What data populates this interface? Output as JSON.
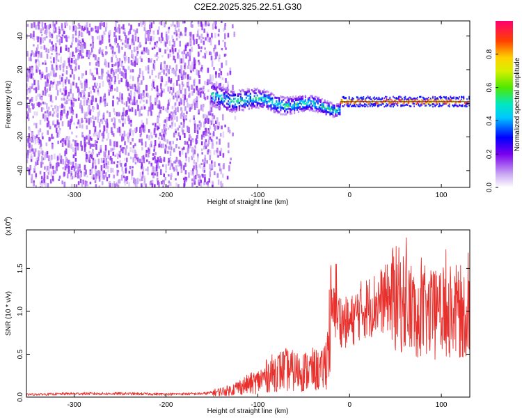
{
  "figure_title": "C2E2.2025.325.22.51.G30",
  "colors": {
    "snr_line": "#e8302c",
    "axis": "#000000"
  },
  "chart_data": [
    {
      "type": "heatmap",
      "title": "C2E2.2025.325.22.51.G30",
      "xlabel": "Height of straight line (km)",
      "ylabel": "Frequency (Hz)",
      "xlim": [
        -352,
        131
      ],
      "ylim": [
        -50,
        49
      ],
      "xticks": [
        -300,
        -200,
        -100,
        0,
        100
      ],
      "yticks": [
        -40,
        -20,
        0,
        20,
        40
      ],
      "colorbar": {
        "label": "Normalized spectral amplitude",
        "range": [
          0.0,
          1.0
        ],
        "ticks": [
          0.0,
          0.2,
          0.4,
          0.6,
          0.8
        ]
      },
      "regions": [
        {
          "x_range": [
            -352,
            -150
          ],
          "description": "diffuse noise over full frequency band",
          "amplitude": 0.1
        },
        {
          "x_range": [
            -150,
            -10
          ],
          "center_hz_at_start": 4,
          "center_hz_at_end": -3,
          "amplitude": 0.35
        },
        {
          "x_range": [
            -10,
            131
          ],
          "center_hz": 1,
          "amplitude": 0.9
        }
      ]
    },
    {
      "type": "line",
      "xlabel": "Height of straight line (km)",
      "ylabel": "SNR (10 * v/v)",
      "y_multiplier_label": "(x10",
      "y_multiplier_exp": "4",
      "xlim": [
        -352,
        131
      ],
      "ylim": [
        0,
        19500
      ],
      "xticks": [
        -300,
        -200,
        -100,
        0,
        100
      ],
      "yticks": [
        0,
        5000,
        10000,
        15000
      ],
      "ytick_labels": [
        "0.0",
        "0.5",
        "1.0",
        "1.5"
      ],
      "series": [
        {
          "name": "SNR",
          "x": [
            -352,
            -300,
            -250,
            -200,
            -160,
            -150,
            -130,
            -120,
            -100,
            -90,
            -80,
            -70,
            -60,
            -50,
            -40,
            -30,
            -25,
            -22,
            -20,
            -15,
            -10,
            0,
            10,
            20,
            30,
            40,
            50,
            60,
            70,
            80,
            90,
            100,
            110,
            120,
            131
          ],
          "y": [
            300,
            400,
            400,
            350,
            400,
            500,
            800,
            1200,
            1800,
            2500,
            3000,
            3200,
            3000,
            3000,
            3200,
            3000,
            4500,
            7500,
            9500,
            10000,
            9000,
            8500,
            10000,
            10500,
            11000,
            11500,
            11500,
            11000,
            10000,
            10000,
            9500,
            10000,
            10000,
            10000,
            9500
          ]
        }
      ]
    }
  ]
}
